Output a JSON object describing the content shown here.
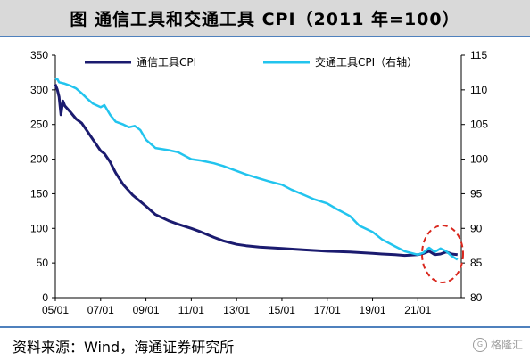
{
  "title": "图  通信工具和交通工具 CPI（2011 年=100）",
  "source": "资料来源：Wind，海通证券研究所",
  "watermark": "格隆汇",
  "colors": {
    "telecom": "#1b1b6f",
    "transport": "#22c4ee",
    "highlight": "#d9261c"
  },
  "chart_data": {
    "type": "line",
    "x_ticks": [
      "05/01",
      "07/01",
      "09/01",
      "11/01",
      "13/01",
      "15/01",
      "17/01",
      "19/01",
      "21/01"
    ],
    "x_range": [
      "2005-01",
      "2022-12"
    ],
    "y_left": {
      "lim": [
        0,
        350
      ],
      "ticks": [
        0,
        50,
        100,
        150,
        200,
        250,
        300,
        350
      ]
    },
    "y_right": {
      "lim": [
        80,
        115
      ],
      "ticks": [
        80,
        85,
        90,
        95,
        100,
        105,
        110,
        115
      ]
    },
    "legend_position": "top",
    "annotation": "red dashed ellipse around 2021–2022 values",
    "series": [
      {
        "name": "通信工具CPI",
        "axis": "left",
        "points": [
          [
            "2005-01",
            308
          ],
          [
            "2005-02",
            301
          ],
          [
            "2005-03",
            290
          ],
          [
            "2005-04",
            264
          ],
          [
            "2005-05",
            284
          ],
          [
            "2005-06",
            277
          ],
          [
            "2005-09",
            268
          ],
          [
            "2005-12",
            258
          ],
          [
            "2006-03",
            252
          ],
          [
            "2006-06",
            240
          ],
          [
            "2006-09",
            228
          ],
          [
            "2007-01",
            212
          ],
          [
            "2007-03",
            208
          ],
          [
            "2007-06",
            196
          ],
          [
            "2007-09",
            180
          ],
          [
            "2008-01",
            163
          ],
          [
            "2008-06",
            148
          ],
          [
            "2009-01",
            132
          ],
          [
            "2009-06",
            120
          ],
          [
            "2010-01",
            111
          ],
          [
            "2010-06",
            106
          ],
          [
            "2011-01",
            100
          ],
          [
            "2011-06",
            95
          ],
          [
            "2012-01",
            87
          ],
          [
            "2012-06",
            82
          ],
          [
            "2013-01",
            77
          ],
          [
            "2013-06",
            75
          ],
          [
            "2014-01",
            73
          ],
          [
            "2015-01",
            71
          ],
          [
            "2016-01",
            69
          ],
          [
            "2017-01",
            67
          ],
          [
            "2018-01",
            66
          ],
          [
            "2019-01",
            64
          ],
          [
            "2019-06",
            63
          ],
          [
            "2020-01",
            62
          ],
          [
            "2020-06",
            61
          ],
          [
            "2021-01",
            62
          ],
          [
            "2021-04",
            64
          ],
          [
            "2021-07",
            67
          ],
          [
            "2021-10",
            62
          ],
          [
            "2022-01",
            63
          ],
          [
            "2022-04",
            66
          ],
          [
            "2022-07",
            63
          ],
          [
            "2022-10",
            62
          ]
        ]
      },
      {
        "name": "交通工具CPI（右轴）",
        "axis": "right",
        "points": [
          [
            "2005-01",
            111.5
          ],
          [
            "2005-02",
            111.6
          ],
          [
            "2005-03",
            111.1
          ],
          [
            "2005-06",
            110.9
          ],
          [
            "2005-09",
            110.6
          ],
          [
            "2005-12",
            110.2
          ],
          [
            "2006-03",
            109.5
          ],
          [
            "2006-06",
            108.7
          ],
          [
            "2006-09",
            108.0
          ],
          [
            "2007-01",
            107.5
          ],
          [
            "2007-03",
            107.8
          ],
          [
            "2007-06",
            106.4
          ],
          [
            "2007-09",
            105.4
          ],
          [
            "2008-01",
            105.0
          ],
          [
            "2008-04",
            104.6
          ],
          [
            "2008-07",
            104.8
          ],
          [
            "2008-10",
            104.2
          ],
          [
            "2009-01",
            102.8
          ],
          [
            "2009-06",
            101.6
          ],
          [
            "2010-01",
            101.3
          ],
          [
            "2010-06",
            101.0
          ],
          [
            "2011-01",
            100.0
          ],
          [
            "2011-06",
            99.8
          ],
          [
            "2012-01",
            99.4
          ],
          [
            "2012-06",
            99.0
          ],
          [
            "2013-01",
            98.3
          ],
          [
            "2013-06",
            97.8
          ],
          [
            "2014-01",
            97.2
          ],
          [
            "2014-06",
            96.8
          ],
          [
            "2015-01",
            96.3
          ],
          [
            "2015-06",
            95.6
          ],
          [
            "2016-01",
            94.8
          ],
          [
            "2016-06",
            94.2
          ],
          [
            "2017-01",
            93.6
          ],
          [
            "2017-06",
            92.8
          ],
          [
            "2018-01",
            91.8
          ],
          [
            "2018-06",
            90.4
          ],
          [
            "2019-01",
            89.5
          ],
          [
            "2019-06",
            88.4
          ],
          [
            "2020-01",
            87.4
          ],
          [
            "2020-06",
            86.7
          ],
          [
            "2021-01",
            86.2
          ],
          [
            "2021-04",
            86.5
          ],
          [
            "2021-07",
            87.2
          ],
          [
            "2021-10",
            86.6
          ],
          [
            "2022-01",
            87.1
          ],
          [
            "2022-04",
            86.7
          ],
          [
            "2022-07",
            86.0
          ],
          [
            "2022-10",
            85.5
          ]
        ]
      }
    ]
  }
}
